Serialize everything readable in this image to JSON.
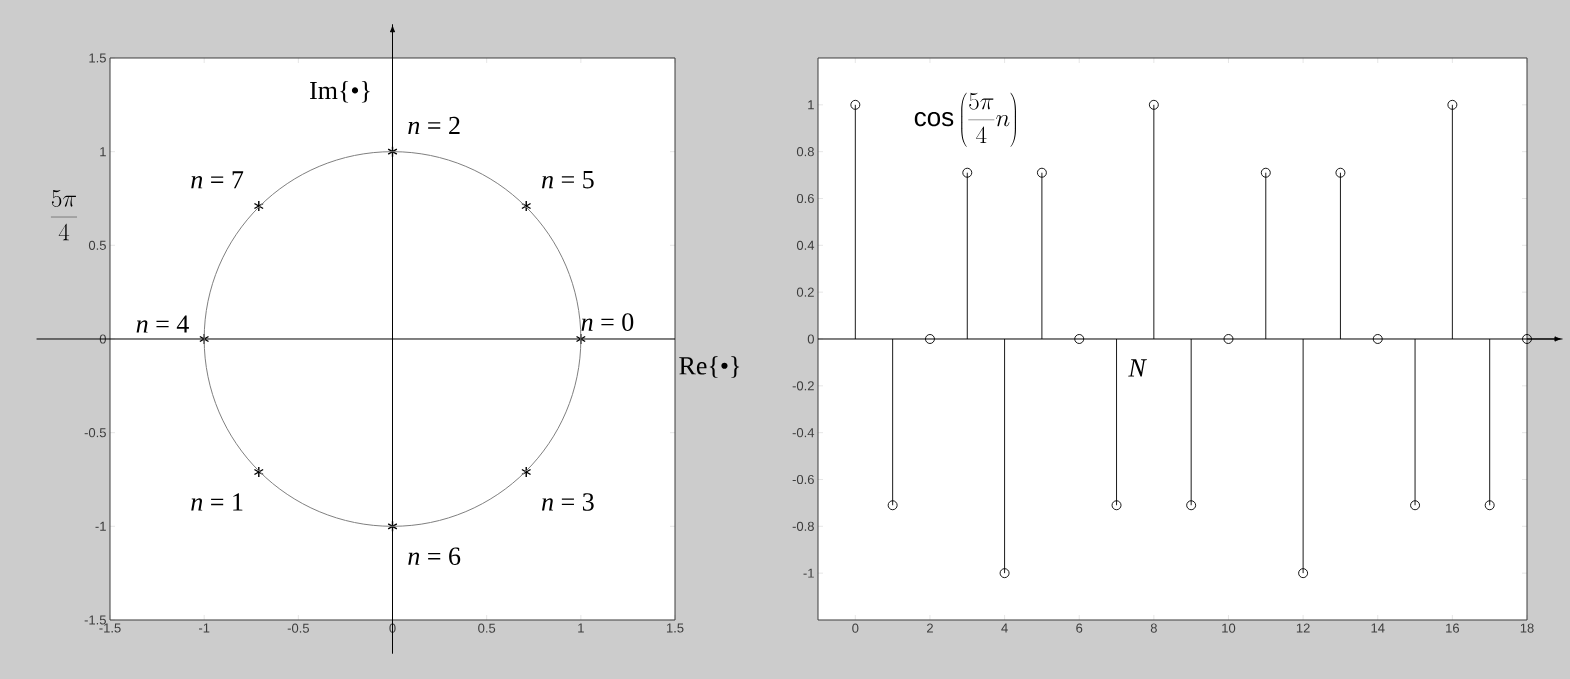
{
  "chart_data": [
    {
      "type": "line",
      "xlabel": "Re{•}",
      "ylabel": "Im{•}",
      "xlim": [
        -1.5,
        1.5
      ],
      "ylim": [
        -1.5,
        1.5
      ],
      "xticks": [
        -1.5,
        -1,
        -0.5,
        0,
        0.5,
        1,
        1.5
      ],
      "yticks": [
        -1.5,
        -1,
        -0.5,
        0,
        0.5,
        1,
        1.5
      ],
      "series": [
        {
          "type": "scatter",
          "color": "#000000",
          "marker": "cross",
          "x": [
            1,
            -0.71,
            0,
            0.71,
            -1,
            0.71,
            0,
            -0.71
          ],
          "values": [
            0,
            -0.71,
            1,
            -0.71,
            0,
            0.71,
            -1,
            0.71
          ]
        }
      ],
      "ref_lines": [
        {
          "axis": "x",
          "value": 0
        },
        {
          "axis": "y",
          "value": 0
        }
      ],
      "annotations": [
        "\\frac{5\\pi}{4}",
        {
          "text": "*n* = 0",
          "x": 1,
          "y": 0
        },
        {
          "text": "*n* = 1",
          "x": -0.71,
          "y": -0.71
        },
        {
          "text": "*n* = 2",
          "x": 0,
          "y": 1
        },
        {
          "text": "*n* = 3",
          "x": 0.71,
          "y": -0.71
        },
        {
          "text": "*n* = 4",
          "x": -1,
          "y": 0
        },
        {
          "text": "*n* = 5",
          "x": 0.71,
          "y": 0.71
        },
        {
          "text": "*n* = 6",
          "x": 0,
          "y": -1
        },
        {
          "text": "*n* = 7",
          "x": -0.71,
          "y": 0.71
        }
      ]
    },
    {
      "type": "lollipop",
      "title": "\\cos\\left(\\frac{5\\pi}{4}n\\right)",
      "xlabel": "N",
      "color": "#000000",
      "marker": "circle",
      "x": [
        0,
        1,
        2,
        3,
        4,
        5,
        6,
        7,
        8,
        9,
        10,
        11,
        12,
        13,
        14,
        15,
        16,
        17,
        18
      ],
      "values": [
        1,
        -0.71,
        0,
        0.71,
        -1,
        0.71,
        0,
        -0.71,
        1,
        -0.71,
        0,
        0.71,
        -1,
        0.71,
        0,
        -0.71,
        1,
        -0.71,
        0
      ],
      "xlim": [
        -1,
        18
      ],
      "ylim": [
        -1.2,
        1.2
      ],
      "xticks": [
        0,
        2,
        4,
        6,
        8,
        10,
        12,
        14,
        16,
        18
      ],
      "yticks": [
        -1,
        -0.8,
        -0.6,
        -0.4,
        -0.2,
        0,
        0.2,
        0.4,
        0.6,
        0.8,
        1
      ],
      "ref_lines": [
        {
          "axis": "y",
          "value": 0
        }
      ]
    }
  ]
}
